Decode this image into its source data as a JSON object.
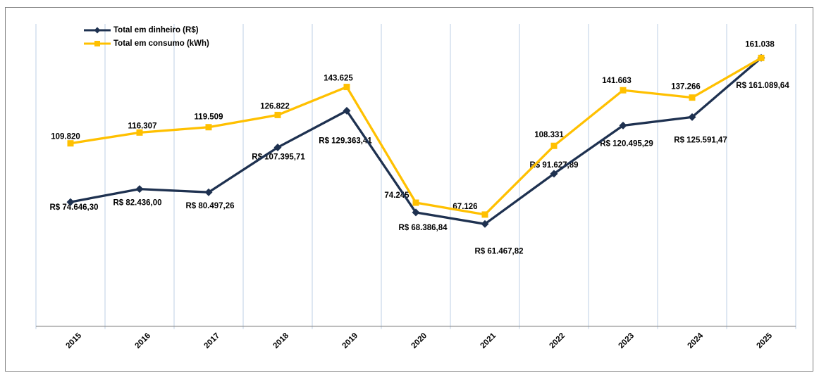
{
  "chart_data": {
    "type": "line",
    "categories": [
      "2015",
      "2016",
      "2017",
      "2018",
      "2019",
      "2020",
      "2021",
      "2022",
      "2023",
      "2024",
      "2025"
    ],
    "series": [
      {
        "name": "Total em dinheiro (R$)",
        "color": "#1E3150",
        "marker": "diamond",
        "values": [
          74646.3,
          82436.0,
          80497.26,
          107395.71,
          129363.41,
          68386.84,
          61467.82,
          91627.89,
          120495.29,
          125591.47,
          161089.64
        ],
        "labels": [
          "R$ 74.646,30",
          "R$ 82.436,00",
          "R$ 80.497,26",
          "R$ 107.395,71",
          "R$ 129.363,41",
          "R$ 68.386,84",
          "R$ 61.467,82",
          "R$ 91.627,89",
          "R$ 120.495,29",
          "R$ 125.591,47",
          "R$ 161.089,64"
        ],
        "label_offsets": [
          [
            5,
            11
          ],
          [
            -3,
            23
          ],
          [
            2,
            23
          ],
          [
            1,
            17
          ],
          [
            -2,
            46
          ],
          [
            10,
            25
          ],
          [
            20,
            42
          ],
          [
            0,
            -9
          ],
          [
            5,
            29
          ],
          [
            12,
            36
          ],
          [
            2,
            43
          ]
        ]
      },
      {
        "name": "Total em consumo (kWh)",
        "color": "#FFC000",
        "marker": "square",
        "values": [
          109820,
          116307,
          119509,
          126822,
          143625,
          74245,
          67126,
          108331,
          141663,
          137266,
          161038
        ],
        "labels": [
          "109.820",
          "116.307",
          "119.509",
          "126.822",
          "143.625",
          "74.245",
          "67.126",
          "108.331",
          "141.663",
          "137.266",
          "161.038"
        ],
        "label_offsets": [
          [
            -7,
            -6
          ],
          [
            4,
            -6
          ],
          [
            0,
            -11
          ],
          [
            -4,
            -9
          ],
          [
            -12,
            -9
          ],
          [
            -27,
            -7
          ],
          [
            -28,
            -8
          ],
          [
            -7,
            -12
          ],
          [
            -9,
            -10
          ],
          [
            -9,
            -12
          ],
          [
            -2,
            -16
          ]
        ]
      }
    ],
    "ylim": [
      0,
      181000
    ],
    "grid": "vertical",
    "legend_position": "top-left",
    "x_axis_rotation": -45,
    "colors": {
      "gridline": "#BCCFE6",
      "axis": "#8F8F8F",
      "tick": "#BCCFE6",
      "label": "#000000",
      "border": "#7F7F7F",
      "background": "#FFFFFF"
    }
  }
}
